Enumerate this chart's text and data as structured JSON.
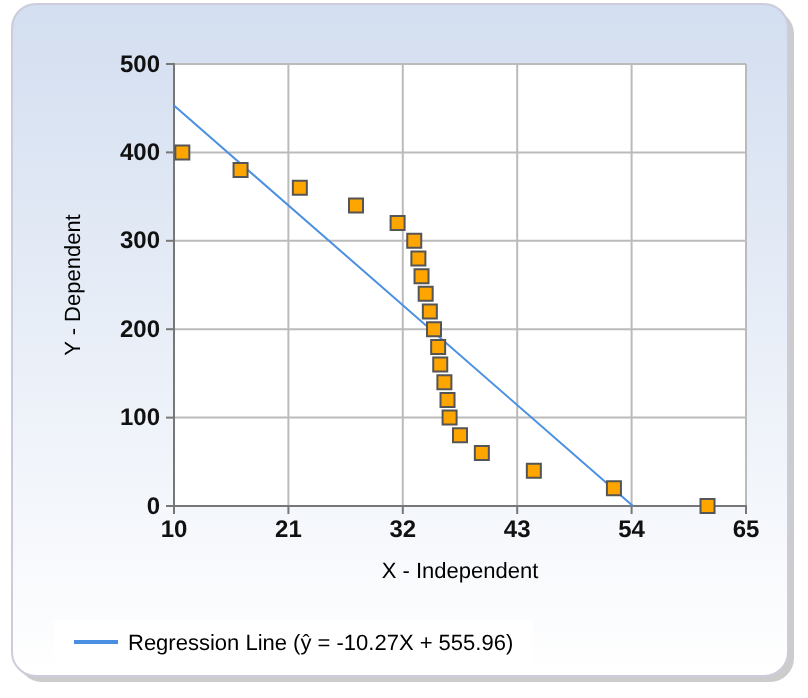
{
  "chart_data": {
    "type": "scatter",
    "xlabel": "X - Independent",
    "ylabel": "Y - Dependent",
    "xlim": [
      10,
      65
    ],
    "xticks": [
      10,
      21,
      32,
      43,
      54,
      65
    ],
    "ylim": [
      0,
      500
    ],
    "yticks": [
      0,
      100,
      200,
      300,
      400,
      500
    ],
    "grid": true,
    "legend": "bottom left",
    "series": [
      {
        "marker": "square",
        "color": "#ffa500",
        "x": [
          10.8,
          16.4,
          22.1,
          27.5,
          31.5,
          33.1,
          33.5,
          33.8,
          34.2,
          34.6,
          35.0,
          35.4,
          35.6,
          36.0,
          36.3,
          36.5,
          37.5,
          39.6,
          44.6,
          52.3,
          61.3
        ],
        "values": [
          400,
          380,
          360,
          340,
          320,
          300,
          280,
          260,
          240,
          220,
          200,
          180,
          160,
          140,
          120,
          100,
          80,
          60,
          40,
          20,
          0
        ]
      },
      {
        "type": "line",
        "name": "Regression Line (ŷ = -10.27X + 555.96)",
        "color": "#4a90e2",
        "x": [
          10,
          54.13
        ],
        "values": [
          453,
          0
        ]
      }
    ]
  }
}
